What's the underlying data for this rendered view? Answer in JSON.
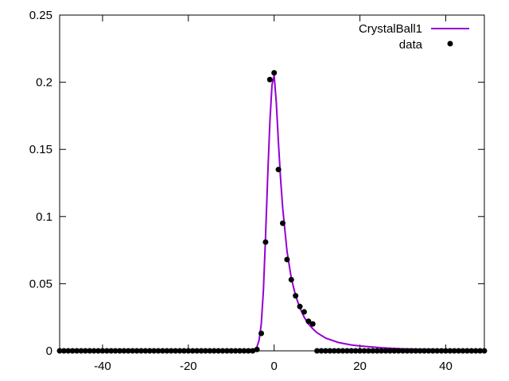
{
  "chart_data": {
    "type": "scatter",
    "xlim": [
      -50,
      49
    ],
    "ylim": [
      0,
      0.25
    ],
    "xticks": [
      -40,
      -20,
      0,
      20,
      40
    ],
    "yticks": [
      0,
      0.05,
      0.1,
      0.15,
      0.2,
      0.25
    ],
    "xtick_labels": [
      "-40",
      "-20",
      "0",
      "20",
      "40"
    ],
    "ytick_labels": [
      "0",
      "0.05",
      "0.1",
      "0.15",
      "0.2",
      "0.25"
    ],
    "grid": false,
    "legend_position": "top-right",
    "series": [
      {
        "name": "CrystalBall1",
        "kind": "line",
        "color": "#9400d3",
        "x": [
          -50,
          -10,
          -6,
          -5,
          -4.5,
          -4,
          -3.5,
          -3,
          -2.5,
          -2,
          -1.5,
          -1,
          -0.5,
          0,
          0.5,
          1,
          1.5,
          2,
          3,
          4,
          5,
          6,
          7,
          8,
          9,
          10,
          12,
          15,
          18,
          20,
          25,
          30,
          35,
          40,
          45,
          49
        ],
        "y": [
          0,
          0,
          0.0001,
          0.0005,
          0.0012,
          0.003,
          0.008,
          0.02,
          0.045,
          0.085,
          0.13,
          0.17,
          0.198,
          0.205,
          0.185,
          0.155,
          0.128,
          0.106,
          0.074,
          0.054,
          0.041,
          0.032,
          0.025,
          0.02,
          0.0165,
          0.0135,
          0.0095,
          0.0062,
          0.0044,
          0.0036,
          0.0023,
          0.0015,
          0.0011,
          0.0008,
          0.0006,
          0.0005
        ]
      },
      {
        "name": "data",
        "kind": "points",
        "color": "#000000",
        "x": [
          -50,
          -49,
          -48,
          -47,
          -46,
          -45,
          -44,
          -43,
          -42,
          -41,
          -40,
          -39,
          -38,
          -37,
          -36,
          -35,
          -34,
          -33,
          -32,
          -31,
          -30,
          -29,
          -28,
          -27,
          -26,
          -25,
          -24,
          -23,
          -22,
          -21,
          -20,
          -19,
          -18,
          -17,
          -16,
          -15,
          -14,
          -13,
          -12,
          -11,
          -10,
          -9,
          -8,
          -7,
          -6,
          -5,
          -4,
          -3,
          -2,
          -1,
          0,
          1,
          2,
          3,
          4,
          5,
          6,
          7,
          8,
          9,
          10,
          11,
          12,
          13,
          14,
          15,
          16,
          17,
          18,
          19,
          20,
          21,
          22,
          23,
          24,
          25,
          26,
          27,
          28,
          29,
          30,
          31,
          32,
          33,
          34,
          35,
          36,
          37,
          38,
          39,
          40,
          41,
          42,
          43,
          44,
          45,
          46,
          47,
          48,
          49
        ],
        "y": [
          0,
          0,
          0,
          0,
          0,
          0,
          0,
          0,
          0,
          0,
          0,
          0,
          0,
          0,
          0,
          0,
          0,
          0,
          0,
          0,
          0,
          0,
          0,
          0,
          0,
          0,
          0,
          0,
          0,
          0,
          0,
          0,
          0,
          0,
          0,
          0,
          0,
          0,
          0,
          0,
          0,
          0,
          0,
          0,
          0,
          0,
          0.001,
          0.013,
          0.081,
          0.202,
          0.207,
          0.135,
          0.095,
          0.068,
          0.053,
          0.041,
          0.033,
          0.029,
          0.022,
          0.02,
          0,
          0,
          0,
          0,
          0,
          0,
          0,
          0,
          0,
          0,
          0,
          0,
          0,
          0,
          0,
          0,
          0,
          0,
          0,
          0,
          0,
          0,
          0,
          0,
          0,
          0,
          0,
          0,
          0,
          0,
          0,
          0,
          0,
          0,
          0,
          0,
          0,
          0,
          0,
          0
        ]
      }
    ]
  }
}
